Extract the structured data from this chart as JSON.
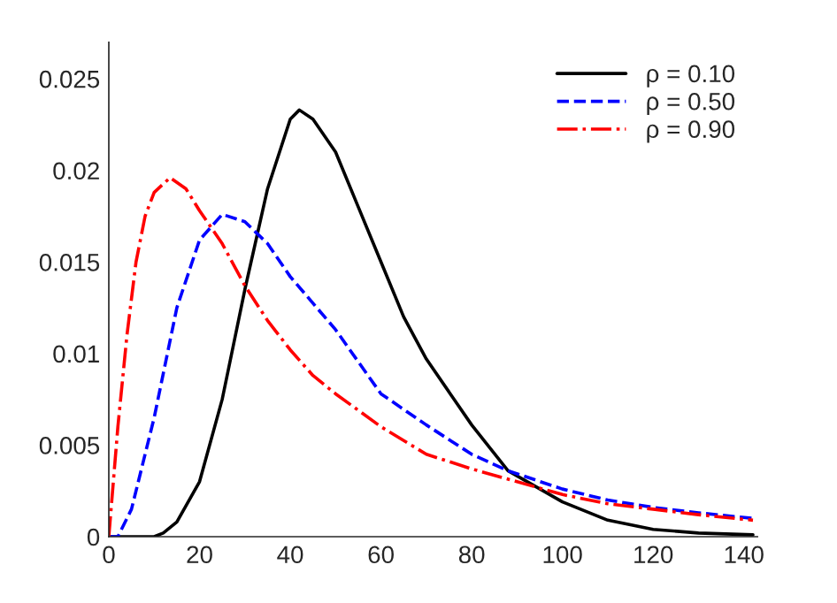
{
  "chart_data": {
    "type": "line",
    "xlim": [
      0,
      143
    ],
    "ylim": [
      0,
      0.027
    ],
    "xticks": [
      0,
      20,
      40,
      60,
      80,
      100,
      120,
      140
    ],
    "yticks": [
      0,
      0.005,
      0.01,
      0.015,
      0.02,
      0.025
    ],
    "grid": false,
    "legend": "top right",
    "marker": "none",
    "series": [
      {
        "name": "ρ = 0.10",
        "color": "#000000",
        "line_style": "solid",
        "x": [
          0,
          5,
          10,
          12,
          15,
          20,
          25,
          30,
          35,
          40,
          42,
          45,
          50,
          55,
          60,
          65,
          70,
          80,
          88,
          100,
          110,
          120,
          130,
          142
        ],
        "values": [
          0,
          0,
          0,
          0.0002,
          0.0008,
          0.003,
          0.0075,
          0.0135,
          0.019,
          0.0228,
          0.0233,
          0.0228,
          0.021,
          0.018,
          0.015,
          0.012,
          0.0097,
          0.0061,
          0.0036,
          0.0019,
          0.0009,
          0.0004,
          0.0002,
          0.0001
        ]
      },
      {
        "name": "ρ = 0.50",
        "color": "#0000ff",
        "line_style": "dashed",
        "x": [
          0,
          2,
          5,
          10,
          15,
          20,
          25,
          30,
          35,
          40,
          50,
          60,
          70,
          80,
          88,
          100,
          110,
          120,
          130,
          142
        ],
        "values": [
          0,
          0,
          0.0015,
          0.0065,
          0.0125,
          0.0162,
          0.0176,
          0.0172,
          0.016,
          0.0142,
          0.0113,
          0.0078,
          0.0061,
          0.0045,
          0.0036,
          0.0026,
          0.002,
          0.0016,
          0.0013,
          0.001
        ]
      },
      {
        "name": "ρ = 0.90",
        "color": "#ff0000",
        "line_style": "dashdot",
        "x": [
          0,
          2,
          4,
          6,
          8,
          10,
          13.5,
          17,
          20,
          25,
          30,
          35,
          40,
          45,
          50,
          60,
          70,
          80,
          90,
          100,
          110,
          120,
          130,
          142
        ],
        "values": [
          0,
          0.006,
          0.011,
          0.015,
          0.0175,
          0.0188,
          0.0196,
          0.019,
          0.0178,
          0.016,
          0.0137,
          0.0118,
          0.0102,
          0.0088,
          0.0078,
          0.006,
          0.0045,
          0.0037,
          0.003,
          0.0023,
          0.0018,
          0.0015,
          0.0012,
          0.0009
        ]
      }
    ]
  }
}
